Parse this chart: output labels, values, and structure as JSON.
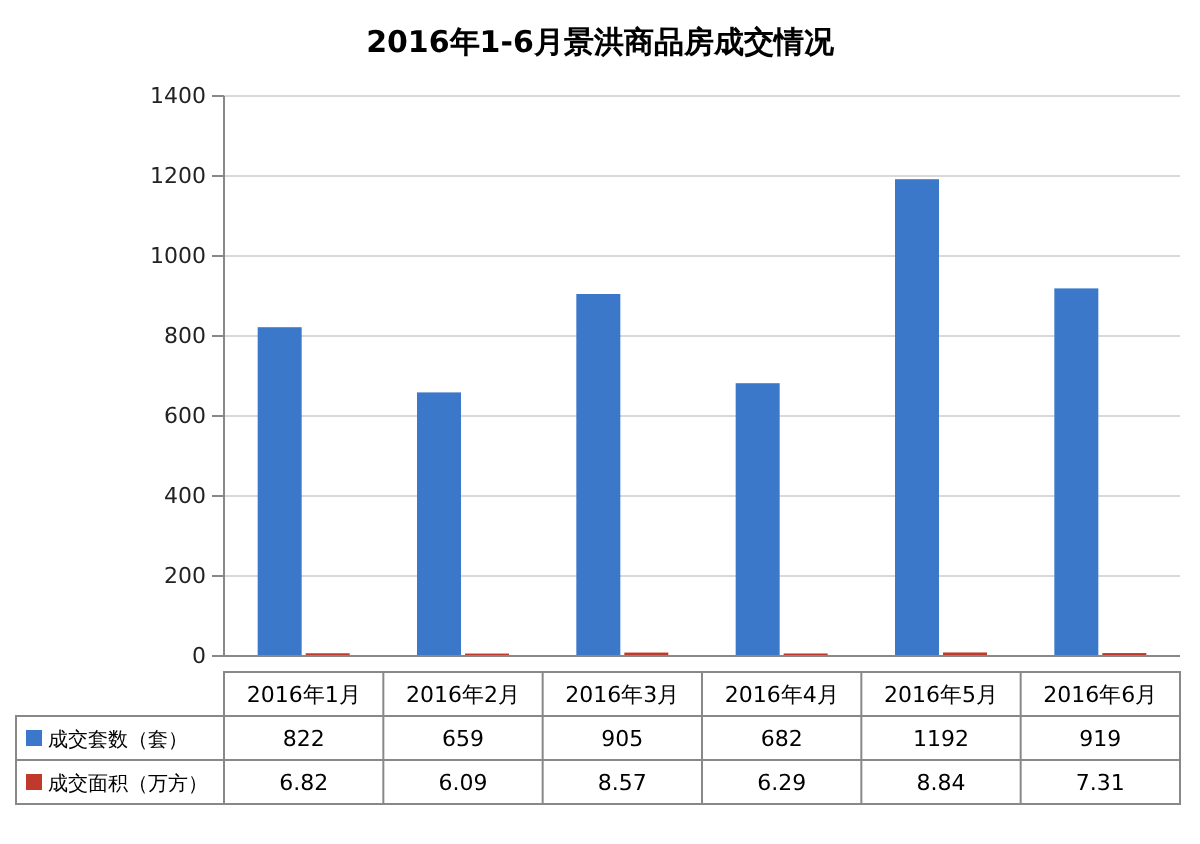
{
  "chart_data": {
    "type": "bar",
    "title": "2016年1-6月景洪商品房成交情况",
    "categories": [
      "2016年1月",
      "2016年2月",
      "2016年3月",
      "2016年4月",
      "2016年5月",
      "2016年6月"
    ],
    "series": [
      {
        "name": "成交套数（套）",
        "color": "#3b78c9",
        "values": [
          822,
          659,
          905,
          682,
          1192,
          919
        ]
      },
      {
        "name": "成交面积（万方）",
        "color": "#c0392b",
        "values": [
          6.82,
          6.09,
          8.57,
          6.29,
          8.84,
          7.31
        ]
      }
    ],
    "ylim": [
      0,
      1400
    ],
    "yticks": [
      0,
      200,
      400,
      600,
      800,
      1000,
      1200,
      1400
    ],
    "grid": "y",
    "legend": "bottom",
    "data_labels": true
  }
}
